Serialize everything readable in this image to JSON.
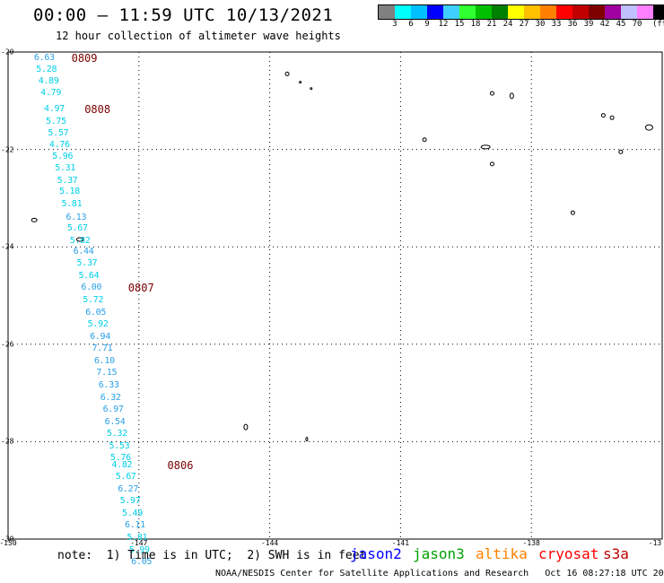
{
  "header": {
    "title": "00:00 – 11:59 UTC 10/13/2021",
    "subtitle": "12 hour collection of altimeter wave heights"
  },
  "legend": {
    "colors": [
      "#808080",
      "#00ffff",
      "#00c0ff",
      "#0000ff",
      "#40d0ff",
      "#30ff30",
      "#00c000",
      "#008000",
      "#ffff00",
      "#ffc000",
      "#ff8000",
      "#ff0000",
      "#c00000",
      "#800000",
      "#a000a0",
      "#c0c0ff",
      "#ff80ff",
      "#000000"
    ],
    "labels": [
      "3",
      "6",
      "9",
      "12",
      "15",
      "18",
      "21",
      "24",
      "27",
      "30",
      "33",
      "36",
      "39",
      "42",
      "45",
      "70"
    ],
    "unit": "(ft)"
  },
  "map": {
    "lat_labels": [
      "-20",
      "-22",
      "-24",
      "-26",
      "-28",
      "-30"
    ],
    "lon_labels": [
      "-150",
      "-147",
      "-144",
      "-141",
      "-138",
      "-13"
    ],
    "track_points": [
      [
        "6.63",
        -149.2,
        -20.15
      ],
      [
        "5.28",
        -149.15,
        -20.38
      ],
      [
        "4.89",
        -149.1,
        -20.62
      ],
      [
        "4.79",
        -149.05,
        -20.87
      ],
      [
        "4.97",
        -148.97,
        -21.2
      ],
      [
        "5.75",
        -148.93,
        -21.45
      ],
      [
        "5.57",
        -148.88,
        -21.7
      ],
      [
        "4.76",
        -148.85,
        -21.93
      ],
      [
        "5.96",
        -148.78,
        -22.17
      ],
      [
        "5.31",
        -148.72,
        -22.42
      ],
      [
        "5.37",
        -148.67,
        -22.67
      ],
      [
        "5.18",
        -148.62,
        -22.9
      ],
      [
        "5.81",
        -148.57,
        -23.15
      ],
      [
        "6.13",
        -148.47,
        -23.42
      ],
      [
        "5.67",
        -148.44,
        -23.65
      ],
      [
        "5.82",
        -148.38,
        -23.9
      ],
      [
        "6.44",
        -148.3,
        -24.12
      ],
      [
        "5.37",
        -148.22,
        -24.37
      ],
      [
        "5.64",
        -148.18,
        -24.62
      ],
      [
        "6.00",
        -148.12,
        -24.87
      ],
      [
        "5.72",
        -148.08,
        -25.12
      ],
      [
        "6.05",
        -148.02,
        -25.37
      ],
      [
        "5.92",
        -147.97,
        -25.62
      ],
      [
        "6.94",
        -147.92,
        -25.87
      ],
      [
        "7.71",
        -147.87,
        -26.12
      ],
      [
        "6.10",
        -147.82,
        -26.37
      ],
      [
        "7.15",
        -147.77,
        -26.62
      ],
      [
        "6.33",
        -147.72,
        -26.87
      ],
      [
        "6.32",
        -147.68,
        -27.12
      ],
      [
        "6.97",
        -147.62,
        -27.37
      ],
      [
        "6.54",
        -147.58,
        -27.62
      ],
      [
        "5.32",
        -147.53,
        -27.87
      ],
      [
        "5.53",
        -147.48,
        -28.12
      ],
      [
        "5.76",
        -147.45,
        -28.37
      ],
      [
        "4.82",
        -147.42,
        -28.5
      ],
      [
        "5.67",
        -147.33,
        -28.75
      ],
      [
        "6.27",
        -147.28,
        -29.0
      ],
      [
        "5.97",
        -147.23,
        -29.25
      ],
      [
        "5.49",
        -147.18,
        -29.5
      ],
      [
        "6.11",
        -147.12,
        -29.75
      ],
      [
        "5.81",
        -147.07,
        -30.0
      ],
      [
        "5.99",
        -147.02,
        -30.25
      ],
      [
        "6.05",
        -146.97,
        -30.5
      ]
    ],
    "time_labels": [
      [
        "0809",
        -148.3,
        -20.15
      ],
      [
        "0808",
        -148.0,
        -21.2
      ],
      [
        "0807",
        -147.0,
        -24.87
      ],
      [
        "0806",
        -146.1,
        -28.5
      ]
    ],
    "islands": [
      [
        -149.4,
        -23.45,
        3,
        2
      ],
      [
        -148.35,
        -23.85,
        4,
        2
      ],
      [
        -143.6,
        -20.45,
        2,
        2
      ],
      [
        -143.3,
        -20.62,
        1,
        1
      ],
      [
        -143.05,
        -20.75,
        1,
        1
      ],
      [
        -140.45,
        -21.8,
        2,
        2
      ],
      [
        -138.9,
        -20.85,
        2,
        2
      ],
      [
        -138.45,
        -20.9,
        2,
        3
      ],
      [
        -139.05,
        -21.95,
        5,
        2
      ],
      [
        -138.9,
        -22.3,
        2,
        2
      ],
      [
        -137.05,
        -23.3,
        2,
        2
      ],
      [
        -136.35,
        -21.3,
        2,
        2
      ],
      [
        -136.15,
        -21.35,
        2,
        2
      ],
      [
        -135.95,
        -22.05,
        2,
        2
      ],
      [
        -135.3,
        -21.55,
        4,
        3
      ],
      [
        -134.2,
        -23.25,
        2,
        2
      ],
      [
        -144.55,
        -27.7,
        2,
        3
      ],
      [
        -143.15,
        -27.95,
        1,
        2
      ]
    ]
  },
  "footer": {
    "note": "note:  1) Time is in UTC;  2) SWH is in feet",
    "satellites": [
      {
        "name": "jason2",
        "color": "#0000ff"
      },
      {
        "name": "jason3",
        "color": "#00a000"
      },
      {
        "name": "altika",
        "color": "#ff8000"
      },
      {
        "name": "cryosat",
        "color": "#ff0000"
      },
      {
        "name": "s3a",
        "color": "#c00000"
      }
    ],
    "credit": "NOAA/NESDIS Center for Satellite Applications and Research   Oct 16 08:27:18 UTC 2021"
  }
}
